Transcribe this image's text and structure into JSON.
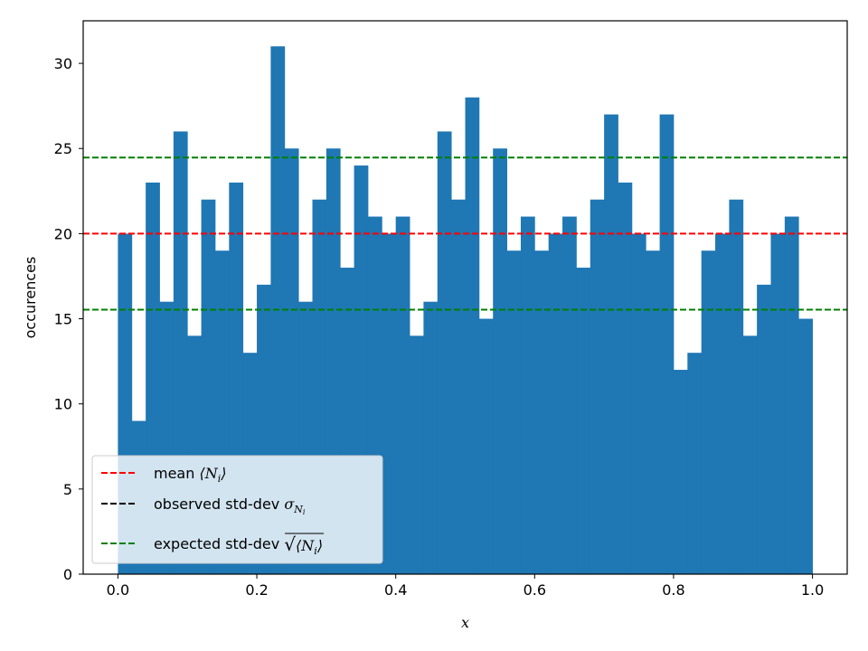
{
  "chart_data": {
    "type": "bar",
    "subtype": "histogram",
    "xlabel": "x",
    "ylabel": "occurences",
    "xlim": [
      -0.05,
      1.05
    ],
    "ylim": [
      0,
      32.5
    ],
    "xticks": [
      0.0,
      0.2,
      0.4,
      0.6,
      0.8,
      1.0
    ],
    "xtick_labels": [
      "0.0",
      "0.2",
      "0.4",
      "0.6",
      "0.8",
      "1.0"
    ],
    "yticks": [
      0,
      5,
      10,
      15,
      20,
      25,
      30
    ],
    "ytick_labels": [
      "0",
      "5",
      "10",
      "15",
      "20",
      "25",
      "30"
    ],
    "grid": false,
    "bin_range": [
      0,
      1
    ],
    "bar_color": "#1f77b4",
    "values": [
      20,
      9,
      23,
      16,
      26,
      14,
      22,
      19,
      23,
      13,
      17,
      31,
      25,
      16,
      22,
      25,
      18,
      24,
      21,
      20,
      21,
      14,
      16,
      26,
      22,
      28,
      15,
      25,
      19,
      21,
      19,
      20,
      21,
      18,
      22,
      27,
      23,
      20,
      19,
      27,
      12,
      13,
      19,
      20,
      22,
      14,
      17,
      20,
      21,
      15
    ],
    "reference_lines": [
      {
        "y": 20,
        "color": "#ff0000",
        "style": "dashed"
      },
      {
        "y": 24.47,
        "color": "#008000",
        "style": "dashed"
      },
      {
        "y": 15.53,
        "color": "#008000",
        "style": "dashed"
      }
    ],
    "legend": {
      "placement": "lower-left",
      "entries": [
        {
          "prefix": "mean ",
          "math": "⟨N",
          "sub": "i",
          "math_end": "⟩",
          "color": "#ff0000"
        },
        {
          "prefix": "observed std-dev ",
          "math": "σ",
          "sub": "N",
          "subsub": "i",
          "color": "#000000"
        },
        {
          "prefix": "expected std-dev ",
          "math": "⟨N",
          "sub": "i",
          "math_end": "⟩",
          "sqrt": true,
          "color": "#008000"
        }
      ]
    }
  }
}
